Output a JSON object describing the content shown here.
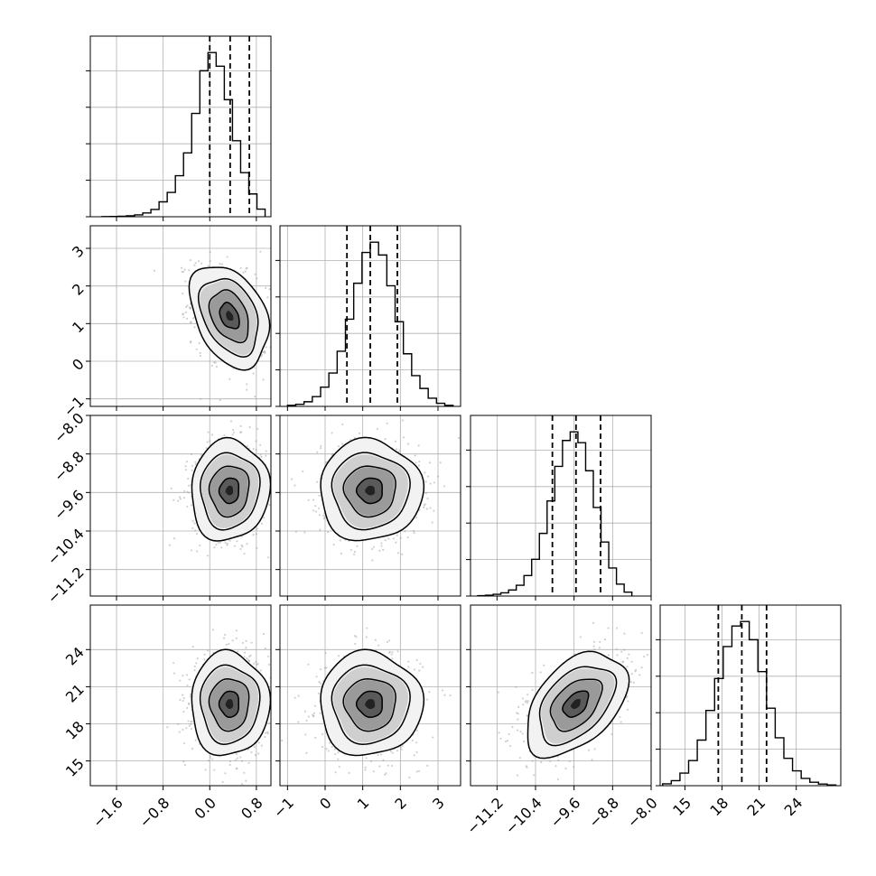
{
  "chart_data": {
    "type": "corner",
    "title": "",
    "axis_labels": [
      "",
      "",
      "",
      ""
    ],
    "parameters": [
      {
        "range": [
          -2.05,
          1.05
        ],
        "ticks": [
          "-1.6",
          "-0.8",
          "0.0",
          "0.8"
        ],
        "tick_values": [
          -1.6,
          -0.8,
          0.0,
          0.8
        ],
        "quantiles": [
          0.0,
          0.35,
          0.68
        ],
        "mean": 0.34,
        "sd": 0.32,
        "hist_bins_x": [
          -1.85,
          -1.71,
          -1.57,
          -1.43,
          -1.29,
          -1.15,
          -1.01,
          -0.87,
          -0.73,
          -0.59,
          -0.45,
          -0.31,
          -0.17,
          -0.03,
          0.11,
          0.25,
          0.39,
          0.53,
          0.67,
          0.81,
          0.95
        ],
        "hist_counts": [
          1,
          2,
          3,
          6,
          12,
          25,
          48,
          98,
          160,
          270,
          420,
          680,
          960,
          1080,
          990,
          770,
          500,
          290,
          150,
          50
        ]
      },
      {
        "range": [
          -1.2,
          3.6
        ],
        "ticks": [
          "-1",
          "0",
          "1",
          "2",
          "3"
        ],
        "tick_values": [
          -1,
          0,
          1,
          2,
          3
        ],
        "quantiles": [
          0.58,
          1.2,
          1.92
        ],
        "mean": 1.2,
        "sd": 0.65,
        "hist_bins_x": [
          -1.0,
          -0.78,
          -0.56,
          -0.34,
          -0.12,
          0.1,
          0.32,
          0.54,
          0.76,
          0.98,
          1.2,
          1.42,
          1.64,
          1.86,
          2.08,
          2.3,
          2.52,
          2.74,
          2.96,
          3.18,
          3.4
        ],
        "hist_counts": [
          4,
          8,
          18,
          38,
          75,
          130,
          215,
          340,
          480,
          600,
          640,
          590,
          470,
          330,
          205,
          120,
          70,
          32,
          12,
          4
        ]
      },
      {
        "range": [
          -11.75,
          -8.0
        ],
        "ticks": [
          "-11.2",
          "-10.4",
          "-9.6",
          "-8.8",
          "-8.0"
        ],
        "tick_values": [
          -11.2,
          -10.4,
          -9.6,
          -8.8,
          -8.0
        ],
        "quantiles": [
          -10.05,
          -9.56,
          -9.05
        ],
        "mean": -9.56,
        "sd": 0.5,
        "hist_bins_x": [
          -11.6,
          -11.44,
          -11.28,
          -11.12,
          -10.96,
          -10.8,
          -10.64,
          -10.48,
          -10.32,
          -10.16,
          -10.0,
          -9.84,
          -9.68,
          -9.52,
          -9.36,
          -9.2,
          -9.04,
          -8.88,
          -8.72,
          -8.56,
          -8.4
        ],
        "hist_counts": [
          2,
          4,
          8,
          15,
          28,
          50,
          95,
          170,
          290,
          440,
          600,
          720,
          760,
          710,
          580,
          410,
          250,
          130,
          55,
          18
        ]
      },
      {
        "range": [
          13.0,
          27.6
        ],
        "ticks": [
          "15",
          "18",
          "21",
          "24"
        ],
        "tick_values": [
          15,
          18,
          21,
          24
        ],
        "quantiles": [
          17.7,
          19.6,
          21.6
        ],
        "mean": 19.6,
        "sd": 2.0,
        "hist_bins_x": [
          13.2,
          13.9,
          14.6,
          15.3,
          16.0,
          16.7,
          17.4,
          18.1,
          18.8,
          19.5,
          20.2,
          20.9,
          21.6,
          22.3,
          23.0,
          23.7,
          24.4,
          25.1,
          25.8,
          26.5,
          27.2
        ],
        "hist_counts": [
          8,
          22,
          55,
          110,
          200,
          330,
          470,
          610,
          700,
          720,
          640,
          500,
          340,
          210,
          120,
          65,
          32,
          15,
          7,
          3
        ]
      }
    ],
    "correlations": {
      "0-1": -0.35,
      "0-2": 0.05,
      "1-2": 0.0,
      "0-3": 0.0,
      "1-3": 0.0,
      "2-3": 0.45
    },
    "contour_levels_sigma": [
      0.5,
      1.0,
      1.5,
      2.0
    ],
    "grid": true,
    "legend": "none"
  }
}
